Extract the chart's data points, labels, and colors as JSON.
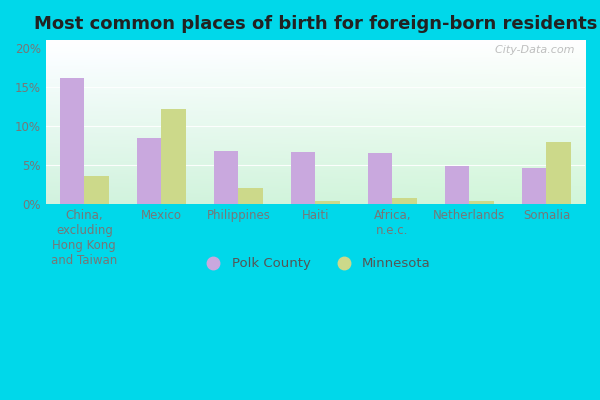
{
  "title": "Most common places of birth for foreign-born residents",
  "categories": [
    "China,\nexcluding\nHong Kong\nand Taiwan",
    "Mexico",
    "Philippines",
    "Haiti",
    "Africa,\nn.e.c.",
    "Netherlands",
    "Somalia"
  ],
  "polk_county": [
    16.2,
    8.4,
    6.8,
    6.6,
    6.5,
    4.8,
    4.6
  ],
  "minnesota": [
    3.6,
    12.2,
    2.0,
    0.4,
    0.8,
    0.3,
    7.9
  ],
  "polk_color": "#c9a8de",
  "minnesota_color": "#ccd98a",
  "background_outer": "#00d8ea",
  "ylim": [
    0,
    21
  ],
  "yticks": [
    0,
    5,
    10,
    15,
    20
  ],
  "ytick_labels": [
    "0%",
    "5%",
    "10%",
    "15%",
    "20%"
  ],
  "watermark": "  City-Data.com",
  "legend_labels": [
    "Polk County",
    "Minnesota"
  ],
  "bar_width": 0.32,
  "title_fontsize": 13,
  "tick_fontsize": 8.5
}
